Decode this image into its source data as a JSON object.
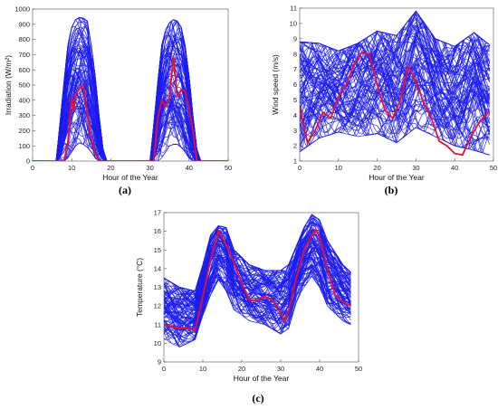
{
  "chart_data": [
    {
      "id": "a",
      "type": "line",
      "panel_label": "(a)",
      "xlabel": "Hour of the Year",
      "ylabel": "Irradiation (W/m²)",
      "xlim": [
        0,
        50
      ],
      "ylim": [
        0,
        1000
      ],
      "xticks": [
        0,
        10,
        20,
        30,
        40,
        50
      ],
      "yticks": [
        0,
        100,
        200,
        300,
        400,
        500,
        600,
        700,
        800,
        900,
        1000
      ],
      "grid": false,
      "colors": {
        "scenarios": "#1c1cf0",
        "highlight": "#e8102a"
      },
      "scenario_envelope": {
        "x": [
          0,
          6,
          7,
          8,
          9,
          10,
          11,
          12,
          13,
          14,
          15,
          16,
          17,
          18,
          19,
          30,
          31,
          32,
          33,
          34,
          35,
          36,
          37,
          38,
          39,
          40,
          41,
          42,
          43,
          50
        ],
        "upper": [
          0,
          0,
          250,
          520,
          760,
          880,
          930,
          945,
          940,
          920,
          760,
          560,
          300,
          80,
          0,
          0,
          250,
          520,
          760,
          860,
          910,
          930,
          920,
          880,
          760,
          560,
          300,
          80,
          0,
          0
        ],
        "lower": [
          0,
          0,
          0,
          0,
          20,
          60,
          100,
          120,
          110,
          90,
          60,
          20,
          0,
          0,
          0,
          0,
          0,
          0,
          20,
          60,
          100,
          110,
          110,
          90,
          60,
          20,
          0,
          0,
          0,
          0
        ],
        "count": 100
      },
      "highlight_series": {
        "x": [
          0,
          8,
          9,
          10,
          10.5,
          11,
          12,
          13,
          14,
          15,
          16,
          17,
          31,
          32,
          33,
          34,
          35,
          36,
          37,
          38,
          39,
          40,
          41,
          42,
          50
        ],
        "y": [
          0,
          0,
          120,
          420,
          330,
          440,
          480,
          500,
          300,
          150,
          50,
          0,
          0,
          280,
          400,
          360,
          420,
          690,
          430,
          470,
          460,
          350,
          200,
          0,
          0
        ]
      }
    },
    {
      "id": "b",
      "type": "line",
      "panel_label": "(b)",
      "xlabel": "Hour of the Year",
      "ylabel": "Wind speed (m/s)",
      "xlim": [
        0,
        50
      ],
      "ylim": [
        1,
        11
      ],
      "xticks": [
        0,
        10,
        20,
        30,
        40,
        50
      ],
      "yticks": [
        1,
        2,
        3,
        4,
        5,
        6,
        7,
        8,
        9,
        10,
        11
      ],
      "grid": false,
      "colors": {
        "scenarios": "#1c1cf0",
        "highlight": "#e8102a"
      },
      "scenario_envelope": {
        "x": [
          0,
          5,
          10,
          15,
          20,
          25,
          30,
          35,
          40,
          45,
          49
        ],
        "upper": [
          8.8,
          8.7,
          8.2,
          8.7,
          9.5,
          9.2,
          10.8,
          9.0,
          8.5,
          9.4,
          8.6
        ],
        "lower": [
          1.6,
          2.5,
          2.9,
          2.6,
          2.8,
          2.2,
          3.2,
          2.6,
          2.0,
          1.7,
          1.4
        ],
        "count": 100
      },
      "highlight_series": {
        "x": [
          0,
          2,
          4,
          6,
          8,
          10,
          12,
          14,
          16,
          18,
          20,
          22,
          24,
          26,
          28,
          30,
          32,
          34,
          36,
          38,
          40,
          42,
          44,
          46,
          48,
          49
        ],
        "y": [
          4.5,
          2.2,
          3.0,
          4.2,
          3.8,
          5.2,
          6.0,
          7.3,
          8.1,
          8.0,
          6.0,
          4.3,
          3.8,
          5.0,
          7.2,
          6.2,
          4.8,
          3.8,
          2.3,
          2.0,
          1.5,
          1.4,
          2.5,
          3.4,
          4.0,
          4.3
        ]
      }
    },
    {
      "id": "c",
      "type": "line",
      "panel_label": "(c)",
      "xlabel": "Hour of the Year",
      "ylabel": "Temperature (°C)",
      "xlim": [
        0,
        50
      ],
      "ylim": [
        9,
        17
      ],
      "xticks": [
        0,
        10,
        20,
        30,
        40,
        50
      ],
      "yticks": [
        9,
        10,
        11,
        12,
        13,
        14,
        15,
        16,
        17
      ],
      "grid": false,
      "colors": {
        "scenarios": "#1c1cf0",
        "highlight": "#e8102a"
      },
      "scenario_envelope": {
        "x": [
          0,
          4,
          8,
          10,
          12,
          14,
          16,
          18,
          22,
          26,
          30,
          32,
          34,
          36,
          38,
          40,
          42,
          46,
          48
        ],
        "upper": [
          13.5,
          13.0,
          12.8,
          14.2,
          15.8,
          16.3,
          16.2,
          15.0,
          14.2,
          13.9,
          13.9,
          14.2,
          15.2,
          16.2,
          16.9,
          16.6,
          15.5,
          14.2,
          13.8
        ],
        "lower": [
          10.2,
          9.8,
          10.2,
          11.5,
          12.6,
          13.4,
          12.8,
          11.8,
          11.2,
          11.0,
          10.5,
          10.8,
          12.2,
          13.0,
          13.6,
          13.0,
          12.0,
          11.2,
          11.0
        ],
        "count": 100
      },
      "highlight_series": {
        "x": [
          0,
          2,
          4,
          6,
          8,
          10,
          12,
          14,
          16,
          18,
          20,
          22,
          24,
          26,
          28,
          30,
          31,
          32,
          34,
          36,
          38,
          39,
          40,
          42,
          44,
          46,
          48
        ],
        "y": [
          11.0,
          10.9,
          10.8,
          10.8,
          10.7,
          12.5,
          14.5,
          16.0,
          15.3,
          14.3,
          13.2,
          12.3,
          12.3,
          12.5,
          12.3,
          11.6,
          11.2,
          11.7,
          13.5,
          15.0,
          15.8,
          16.1,
          15.7,
          14.0,
          12.6,
          12.2,
          12.0
        ]
      }
    }
  ]
}
